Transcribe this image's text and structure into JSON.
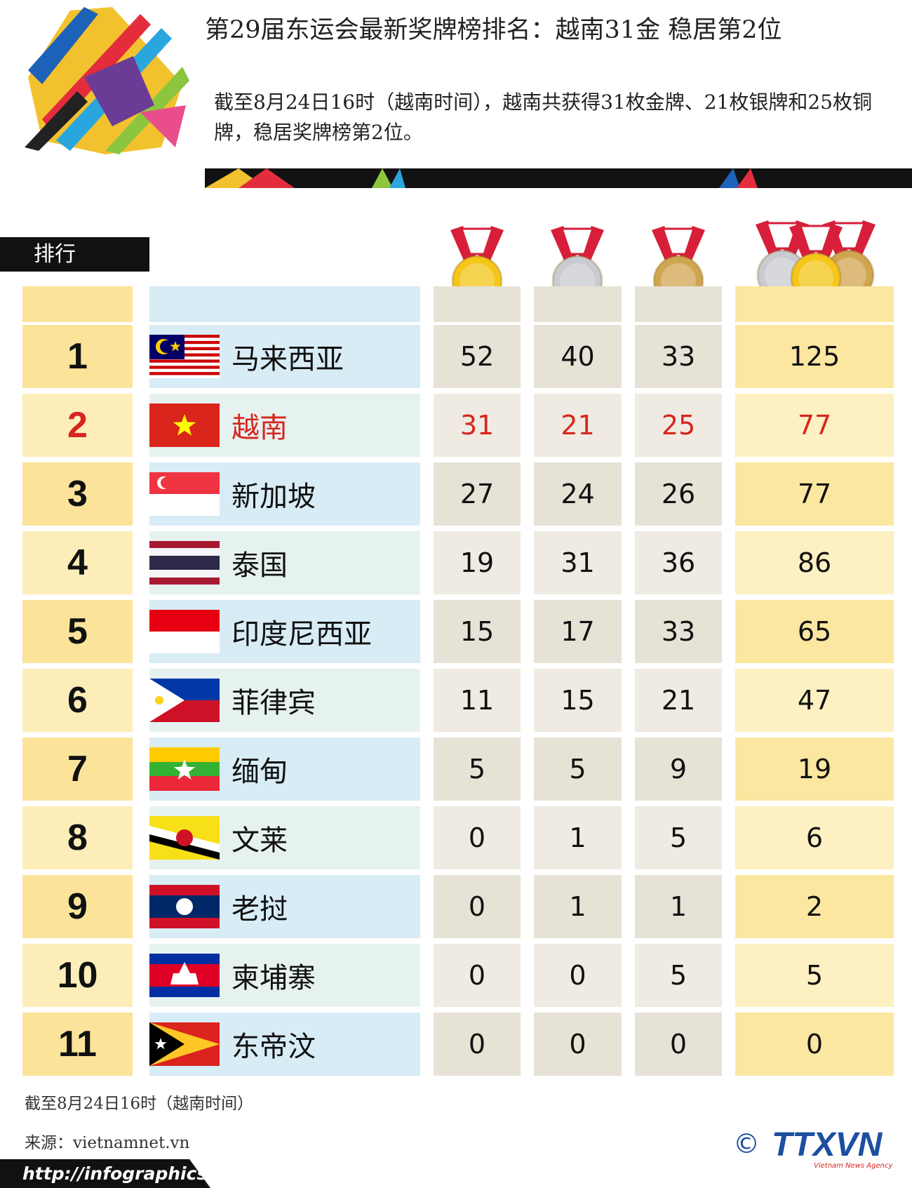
{
  "header": {
    "title": "第29届东运会最新奖牌榜排名：越南31金 稳居第2位",
    "summary": "截至8月24日16时（越南时间），越南共获得31枚金牌、21枚银牌和25枚铜牌，稳居奖牌榜第2位。"
  },
  "table": {
    "rank_label": "排行",
    "rows": [
      [
        1,
        "马来西亚",
        52,
        40,
        33,
        125
      ],
      [
        2,
        "越南",
        31,
        21,
        25,
        77
      ],
      [
        3,
        "新加坡",
        27,
        24,
        26,
        77
      ],
      [
        4,
        "泰国",
        19,
        31,
        36,
        86
      ],
      [
        5,
        "印度尼西亚",
        15,
        17,
        33,
        65
      ],
      [
        6,
        "菲律宾",
        11,
        15,
        21,
        47
      ],
      [
        7,
        "缅甸",
        5,
        5,
        9,
        19
      ],
      [
        8,
        "文莱",
        0,
        1,
        5,
        6
      ],
      [
        9,
        "老挝",
        0,
        1,
        1,
        2
      ],
      [
        10,
        "柬埔寨",
        0,
        0,
        5,
        5
      ],
      [
        11,
        "东帝汶",
        0,
        0,
        0,
        0
      ]
    ]
  },
  "footer": {
    "date_note": "截至8月24日16时（越南时间）",
    "source": "来源：vietnamnet.vn",
    "url": "http://infographics.vn",
    "copyright": "©",
    "logo": "TTXVN",
    "logo_sub": "Vietnam News Agency"
  }
}
